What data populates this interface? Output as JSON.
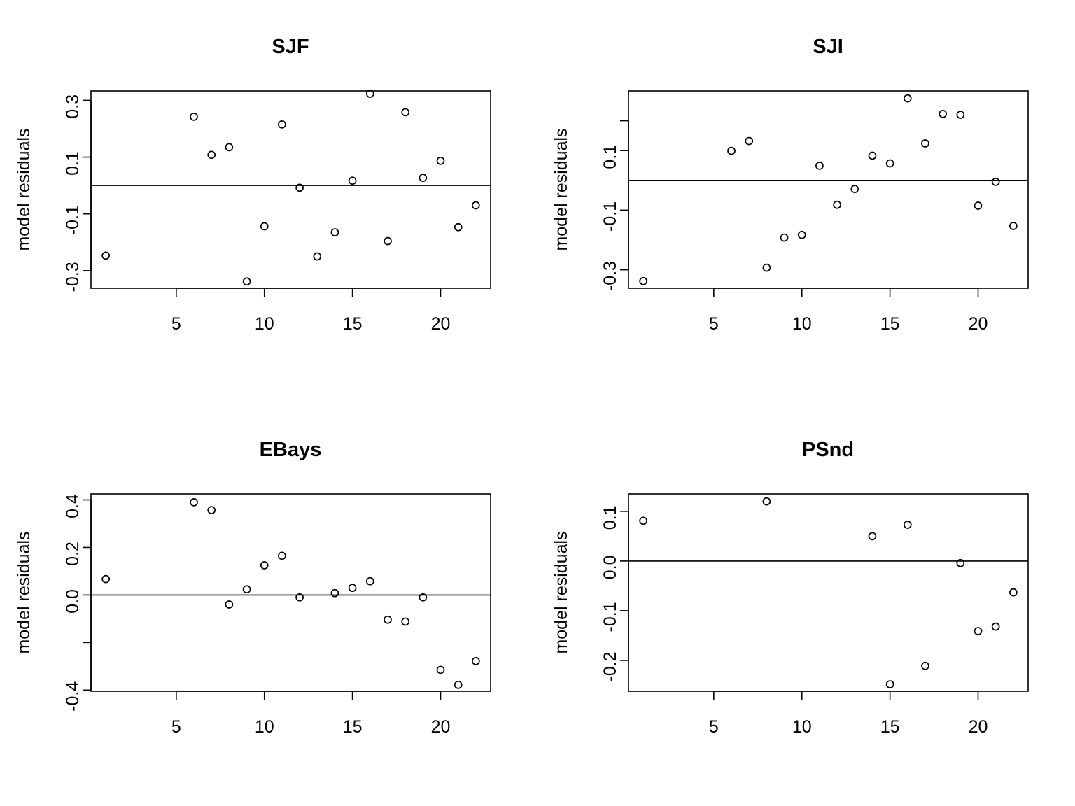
{
  "chart_data": [
    {
      "type": "scatter",
      "title": "SJF",
      "xlabel": "",
      "ylabel": "model residuals",
      "xlim": [
        0.16,
        22.84
      ],
      "ylim": [
        -0.362,
        0.333
      ],
      "xticks": [
        5,
        10,
        15,
        20
      ],
      "yticks": [
        0.3,
        0.1,
        -0.1,
        -0.3
      ],
      "ytick_labels": [
        "0.3",
        "0.1",
        "-0.1",
        "-0.3"
      ],
      "hline": 0,
      "points": [
        {
          "x": 1,
          "y": -0.247
        },
        {
          "x": 6,
          "y": 0.242
        },
        {
          "x": 7,
          "y": 0.108
        },
        {
          "x": 8,
          "y": 0.135
        },
        {
          "x": 9,
          "y": -0.338
        },
        {
          "x": 10,
          "y": -0.144
        },
        {
          "x": 11,
          "y": 0.215
        },
        {
          "x": 12,
          "y": -0.008
        },
        {
          "x": 13,
          "y": -0.25
        },
        {
          "x": 14,
          "y": -0.165
        },
        {
          "x": 15,
          "y": 0.017
        },
        {
          "x": 16,
          "y": 0.323
        },
        {
          "x": 17,
          "y": -0.196
        },
        {
          "x": 18,
          "y": 0.258
        },
        {
          "x": 19,
          "y": 0.027
        },
        {
          "x": 20,
          "y": 0.087
        },
        {
          "x": 21,
          "y": -0.147
        },
        {
          "x": 22,
          "y": -0.07
        }
      ]
    },
    {
      "type": "scatter",
      "title": "SJI",
      "xlabel": "",
      "ylabel": "model residuals",
      "xlim": [
        0.16,
        22.84
      ],
      "ylim": [
        -0.362,
        0.3
      ],
      "xticks": [
        5,
        10,
        15,
        20
      ],
      "yticks": [
        0.2,
        0.1,
        -0.1,
        -0.3
      ],
      "ytick_labels": [
        "",
        "0.1",
        "-0.1",
        "-0.3"
      ],
      "hline": 0,
      "points": [
        {
          "x": 1,
          "y": -0.338
        },
        {
          "x": 6,
          "y": 0.099
        },
        {
          "x": 7,
          "y": 0.132
        },
        {
          "x": 8,
          "y": -0.293
        },
        {
          "x": 9,
          "y": -0.192
        },
        {
          "x": 10,
          "y": -0.183
        },
        {
          "x": 11,
          "y": 0.049
        },
        {
          "x": 12,
          "y": -0.082
        },
        {
          "x": 13,
          "y": -0.029
        },
        {
          "x": 14,
          "y": 0.083
        },
        {
          "x": 15,
          "y": 0.057
        },
        {
          "x": 16,
          "y": 0.275
        },
        {
          "x": 17,
          "y": 0.124
        },
        {
          "x": 18,
          "y": 0.223
        },
        {
          "x": 19,
          "y": 0.22
        },
        {
          "x": 20,
          "y": -0.085
        },
        {
          "x": 21,
          "y": -0.005
        },
        {
          "x": 22,
          "y": -0.153
        }
      ]
    },
    {
      "type": "scatter",
      "title": "EBays",
      "xlabel": "",
      "ylabel": "model residuals",
      "xlim": [
        0.16,
        22.84
      ],
      "ylim": [
        -0.405,
        0.425
      ],
      "xticks": [
        5,
        10,
        15,
        20
      ],
      "yticks": [
        0.4,
        0.2,
        0.0,
        -0.2,
        -0.4
      ],
      "ytick_labels": [
        "0.4",
        "0.2",
        "0.0",
        "",
        "-0.4"
      ],
      "hline": 0,
      "points": [
        {
          "x": 1,
          "y": 0.067
        },
        {
          "x": 6,
          "y": 0.39
        },
        {
          "x": 7,
          "y": 0.357
        },
        {
          "x": 8,
          "y": -0.04
        },
        {
          "x": 9,
          "y": 0.024
        },
        {
          "x": 10,
          "y": 0.125
        },
        {
          "x": 11,
          "y": 0.165
        },
        {
          "x": 12,
          "y": -0.01
        },
        {
          "x": 14,
          "y": 0.008
        },
        {
          "x": 15,
          "y": 0.03
        },
        {
          "x": 16,
          "y": 0.058
        },
        {
          "x": 17,
          "y": -0.104
        },
        {
          "x": 18,
          "y": -0.112
        },
        {
          "x": 19,
          "y": -0.01
        },
        {
          "x": 20,
          "y": -0.315
        },
        {
          "x": 21,
          "y": -0.378
        },
        {
          "x": 22,
          "y": -0.278
        }
      ]
    },
    {
      "type": "scatter",
      "title": "PSnd",
      "xlabel": "",
      "ylabel": "model residuals",
      "xlim": [
        0.16,
        22.84
      ],
      "ylim": [
        -0.262,
        0.135
      ],
      "xticks": [
        5,
        10,
        15,
        20
      ],
      "yticks": [
        0.1,
        0.0,
        -0.1,
        -0.2
      ],
      "ytick_labels": [
        "0.1",
        "0.0",
        "-0.1",
        "-0.2"
      ],
      "hline": 0,
      "points": [
        {
          "x": 1,
          "y": 0.081
        },
        {
          "x": 8,
          "y": 0.12
        },
        {
          "x": 14,
          "y": 0.05
        },
        {
          "x": 15,
          "y": -0.248
        },
        {
          "x": 16,
          "y": 0.073
        },
        {
          "x": 17,
          "y": -0.211
        },
        {
          "x": 19,
          "y": -0.004
        },
        {
          "x": 20,
          "y": -0.141
        },
        {
          "x": 21,
          "y": -0.132
        },
        {
          "x": 22,
          "y": -0.063
        }
      ]
    }
  ]
}
